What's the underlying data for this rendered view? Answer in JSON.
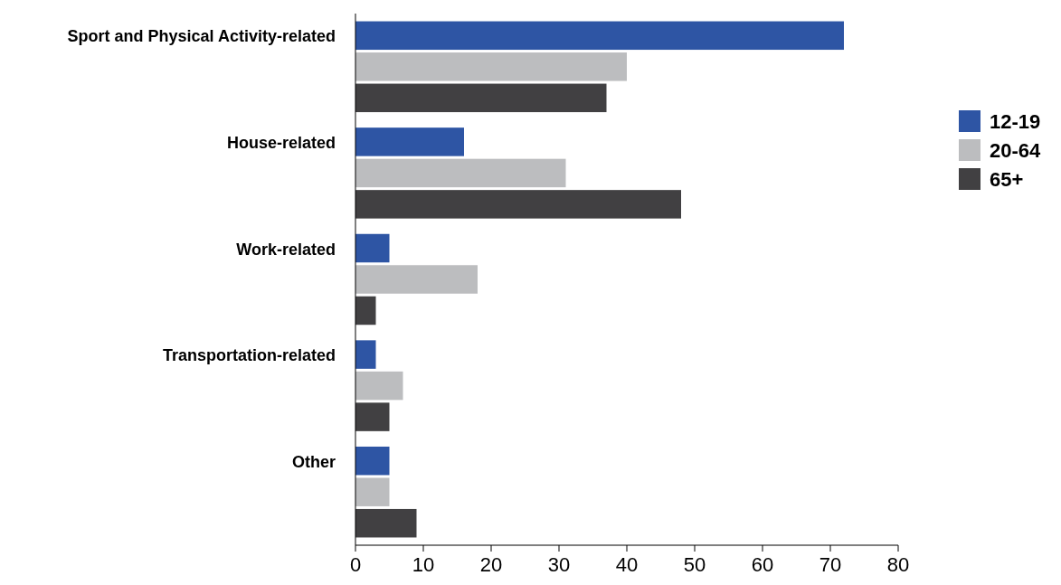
{
  "chart_data": {
    "type": "bar",
    "orientation": "horizontal",
    "categories": [
      "Sport and Physical Activity-related",
      "House-related",
      "Work-related",
      "Transportation-related",
      "Other"
    ],
    "series": [
      {
        "name": "12-19",
        "color": "#2e55a4",
        "values": [
          72,
          16,
          5,
          3,
          5
        ]
      },
      {
        "name": "20-64",
        "color": "#bcbdbf",
        "values": [
          40,
          31,
          18,
          7,
          5
        ]
      },
      {
        "name": "65+",
        "color": "#414042",
        "values": [
          37,
          48,
          3,
          5,
          9
        ]
      }
    ],
    "xlim": [
      0,
      80
    ],
    "xticks": [
      0,
      10,
      20,
      30,
      40,
      50,
      60,
      70,
      80
    ],
    "grid": false,
    "legend": "right"
  }
}
